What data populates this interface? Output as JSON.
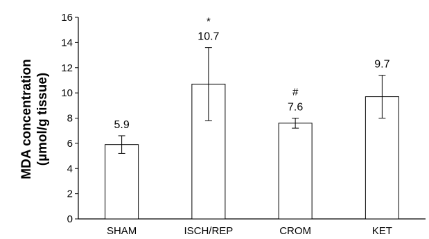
{
  "chart_data": {
    "type": "bar",
    "title": "",
    "xlabel": "",
    "ylabel": "MDA concentration",
    "ylabel_unit": "(µmol/g tissue)",
    "categories": [
      "SHAM",
      "ISCH/REP",
      "CROM",
      "KET"
    ],
    "values": [
      5.9,
      10.7,
      7.6,
      9.7
    ],
    "value_labels": [
      "5.9",
      "10.7",
      "7.6",
      "9.7"
    ],
    "error_low": [
      5.2,
      7.8,
      7.2,
      8.0
    ],
    "error_high": [
      6.6,
      13.6,
      8.0,
      11.4
    ],
    "annotations": [
      "",
      "*",
      "#",
      ""
    ],
    "ylim": [
      0,
      16
    ],
    "yticks": [
      0,
      2,
      4,
      6,
      8,
      10,
      12,
      14,
      16
    ],
    "grid": false,
    "legend": "none",
    "bar_fill": "#ffffff",
    "bar_stroke": "#000000"
  }
}
